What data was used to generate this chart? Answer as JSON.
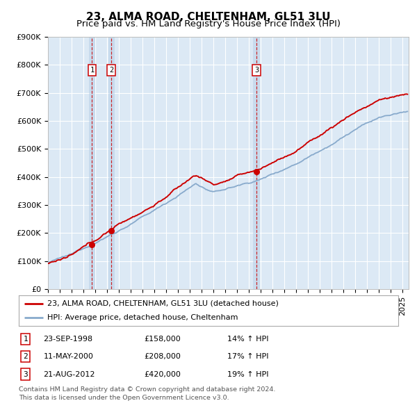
{
  "title": "23, ALMA ROAD, CHELTENHAM, GL51 3LU",
  "subtitle": "Price paid vs. HM Land Registry's House Price Index (HPI)",
  "ylim": [
    0,
    900000
  ],
  "xlim_start": 1995.0,
  "xlim_end": 2025.5,
  "background_color": "#ffffff",
  "plot_bg_color": "#dce9f5",
  "grid_color": "#ffffff",
  "shade_color": "#b8d0e8",
  "sales": [
    {
      "date_label": "23-SEP-1998",
      "date_x": 1998.73,
      "price": 158000,
      "label": "1",
      "hpi_pct": "14% ↑ HPI"
    },
    {
      "date_label": "11-MAY-2000",
      "date_x": 2000.36,
      "price": 208000,
      "label": "2",
      "hpi_pct": "17% ↑ HPI"
    },
    {
      "date_label": "21-AUG-2012",
      "date_x": 2012.64,
      "price": 420000,
      "label": "3",
      "hpi_pct": "19% ↑ HPI"
    }
  ],
  "legend_line1": "23, ALMA ROAD, CHELTENHAM, GL51 3LU (detached house)",
  "legend_line2": "HPI: Average price, detached house, Cheltenham",
  "footer1": "Contains HM Land Registry data © Crown copyright and database right 2024.",
  "footer2": "This data is licensed under the Open Government Licence v3.0.",
  "red_color": "#cc0000",
  "blue_color": "#88aacc",
  "marker_box_color": "#cc0000",
  "title_fontsize": 11,
  "subtitle_fontsize": 9.5,
  "tick_fontsize": 8,
  "ytick_labels": [
    "£0",
    "£100K",
    "£200K",
    "£300K",
    "£400K",
    "£500K",
    "£600K",
    "£700K",
    "£800K",
    "£900K"
  ],
  "ytick_values": [
    0,
    100000,
    200000,
    300000,
    400000,
    500000,
    600000,
    700000,
    800000,
    900000
  ]
}
